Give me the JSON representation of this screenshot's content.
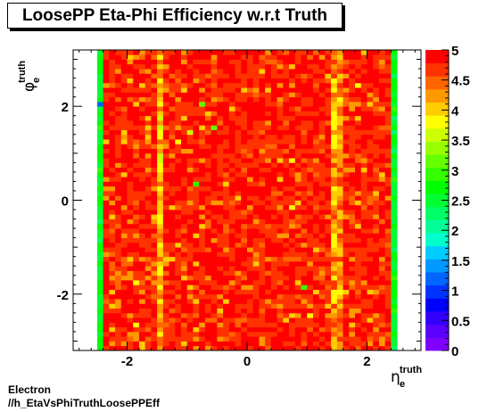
{
  "chart_data": {
    "type": "heatmap",
    "title": "LoosePP Eta-Phi Efficiency w.r.t Truth",
    "xlabel": {
      "base": "η",
      "sub": "e",
      "sup": "truth"
    },
    "ylabel": {
      "base": "φ",
      "sub": "e",
      "sup": "truth"
    },
    "xlim": [
      -2.9,
      2.9
    ],
    "ylim": [
      -3.2,
      3.2
    ],
    "x_ticks": [
      -2,
      0,
      2
    ],
    "y_ticks": [
      -2,
      0,
      2
    ],
    "z_range": [
      0,
      5
    ],
    "colorbar_ticks": [
      0,
      0.5,
      1,
      1.5,
      2,
      2.5,
      3,
      3.5,
      4,
      4.5,
      5
    ],
    "eta_bins": {
      "min": -2.5,
      "max": 2.5,
      "n": 50
    },
    "phi_bins": {
      "min": -3.2,
      "max": 3.2,
      "n": 64
    },
    "typical_value": 4.8,
    "edge_column_values": {
      "-2.45": 2.6,
      "2.45": 2.6
    },
    "crack_column_values": {
      "-1.45": 4.1,
      "1.45": 4.2,
      "1.55": 4.3
    },
    "notable_cells": [
      {
        "eta": -0.75,
        "phi": 2.05,
        "value": 3.2
      },
      {
        "eta": -0.95,
        "phi": 1.45,
        "value": 3.5
      },
      {
        "eta": -0.55,
        "phi": 1.55,
        "value": 3.1
      },
      {
        "eta": -1.15,
        "phi": 1.25,
        "value": 3.8
      },
      {
        "eta": -0.85,
        "phi": 0.35,
        "value": 2.9
      },
      {
        "eta": 0.55,
        "phi": 0.85,
        "value": 4.0
      },
      {
        "eta": 0.75,
        "phi": -0.15,
        "value": 3.9
      },
      {
        "eta": 0.95,
        "phi": -1.85,
        "value": 2.9
      },
      {
        "eta": -1.85,
        "phi": -1.75,
        "value": 3.7
      },
      {
        "eta": 1.85,
        "phi": 2.45,
        "value": 3.8
      },
      {
        "eta": 2.05,
        "phi": -2.55,
        "value": 4.0
      },
      {
        "eta": -1.75,
        "phi": 2.45,
        "value": 4.0
      },
      {
        "eta": -2.05,
        "phi": -3.05,
        "value": 4.2
      },
      {
        "eta": 1.35,
        "phi": -2.25,
        "value": 4.0
      },
      {
        "eta": -2.45,
        "phi": 2.05,
        "value": 1.2
      }
    ]
  },
  "footer": {
    "line1": "Electron",
    "line2": "//h_EtaVsPhiTruthLoosePPEff"
  },
  "palette": [
    "#7f00ff",
    "#5a00ff",
    "#3300ff",
    "#0000ff",
    "#0033ff",
    "#0066ff",
    "#0099ff",
    "#00ccff",
    "#00ffcc",
    "#00ff99",
    "#00ff66",
    "#00ff33",
    "#00ff00",
    "#33ff00",
    "#66ff00",
    "#99ff00",
    "#ccff00",
    "#ffff00",
    "#ffcc00",
    "#ff9900",
    "#ff6600",
    "#ff3300",
    "#ff0000"
  ]
}
